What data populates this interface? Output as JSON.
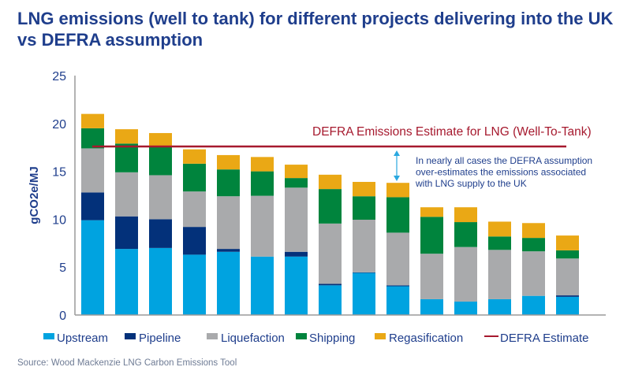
{
  "chart_data": {
    "type": "bar",
    "stacked": true,
    "title": "LNG emissions (well to tank) for different projects delivering into the UK vs DEFRA assumption",
    "ylabel": "gCO2e/MJ",
    "xlabel": "",
    "ylim": [
      0,
      25
    ],
    "yticks": [
      0,
      5,
      10,
      15,
      20,
      25
    ],
    "grid": false,
    "legend_placement": "bottom",
    "series": [
      {
        "name": "Upstream",
        "color": "#00a3e0",
        "values": [
          9.9,
          6.9,
          7.0,
          6.3,
          6.6,
          6.1,
          6.1,
          3.1,
          4.4,
          3.0,
          1.65,
          1.4,
          1.65,
          2.0,
          1.9
        ]
      },
      {
        "name": "Pipeline",
        "color": "#03317a",
        "values": [
          2.9,
          3.4,
          3.0,
          2.9,
          0.3,
          0.0,
          0.5,
          0.15,
          0.05,
          0.1,
          0.0,
          0.0,
          0.0,
          0.0,
          0.15
        ]
      },
      {
        "name": "Liquefaction",
        "color": "#a9aaac",
        "values": [
          4.6,
          4.6,
          4.6,
          3.7,
          5.5,
          6.35,
          6.7,
          6.3,
          5.5,
          5.5,
          4.75,
          5.7,
          5.15,
          4.65,
          3.85
        ]
      },
      {
        "name": "Shipping",
        "color": "#00843d",
        "values": [
          2.1,
          3.0,
          3.0,
          2.9,
          2.8,
          2.55,
          1.0,
          3.6,
          2.45,
          3.7,
          3.85,
          2.6,
          1.4,
          1.4,
          0.85
        ]
      },
      {
        "name": "Regasification",
        "color": "#eaa815",
        "values": [
          1.5,
          1.5,
          1.4,
          1.5,
          1.5,
          1.5,
          1.4,
          1.5,
          1.5,
          1.5,
          1.0,
          1.55,
          1.55,
          1.55,
          1.55
        ]
      }
    ],
    "reference_line": {
      "name": "DEFRA Estimate",
      "value": 17.6,
      "color": "#a6192e",
      "label": "DEFRA Emissions Estimate for LNG (Well-To-Tank)"
    },
    "annotation": {
      "lines": [
        "In nearly all cases the DEFRA assumption",
        "over-estimates the emissions associated",
        "with LNG supply to the UK"
      ],
      "arrow_color": "#2aa8e0"
    }
  },
  "source": "Source: Wood Mackenzie LNG Carbon Emissions Tool",
  "colors": {
    "title": "#1f3e8c",
    "axis_text": "#1f3e8c",
    "axis_line": "#9a9a9a"
  }
}
